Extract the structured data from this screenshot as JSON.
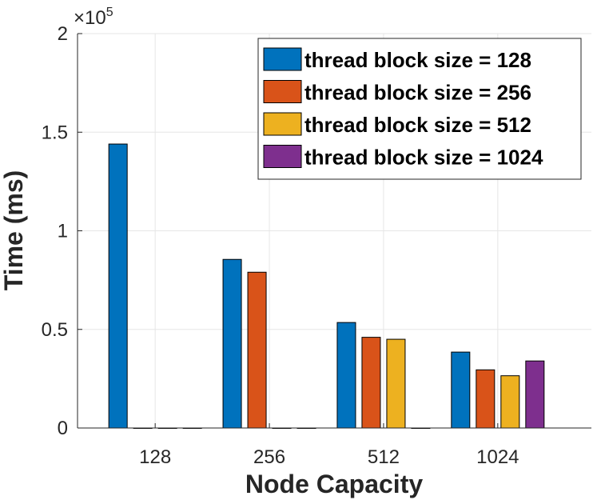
{
  "chart_data": {
    "type": "bar",
    "categories": [
      "128",
      "256",
      "512",
      "1024"
    ],
    "series": [
      {
        "name": "thread block size = 128",
        "color": "#0072BD",
        "values": [
          144000,
          85500,
          53500,
          38500
        ]
      },
      {
        "name": "thread block size = 256",
        "color": "#D95319",
        "values": [
          0,
          79000,
          46000,
          29500
        ]
      },
      {
        "name": "thread block size = 512",
        "color": "#EDB120",
        "values": [
          0,
          0,
          45000,
          26500
        ]
      },
      {
        "name": "thread block size = 1024",
        "color": "#7E2F8E",
        "values": [
          0,
          0,
          0,
          34000
        ]
      }
    ],
    "xlabel": "Node Capacity",
    "ylabel": "Time (ms)",
    "ylim": [
      0,
      200000
    ],
    "yticks": [
      {
        "value": 0,
        "label": "0"
      },
      {
        "value": 50000,
        "label": "0.5"
      },
      {
        "value": 100000,
        "label": "1"
      },
      {
        "value": 150000,
        "label": "1.5"
      },
      {
        "value": 200000,
        "label": "2"
      }
    ],
    "y_multiplier": {
      "base": "×10",
      "exponent": "5"
    },
    "grid": true,
    "legend_position": "top-right"
  }
}
